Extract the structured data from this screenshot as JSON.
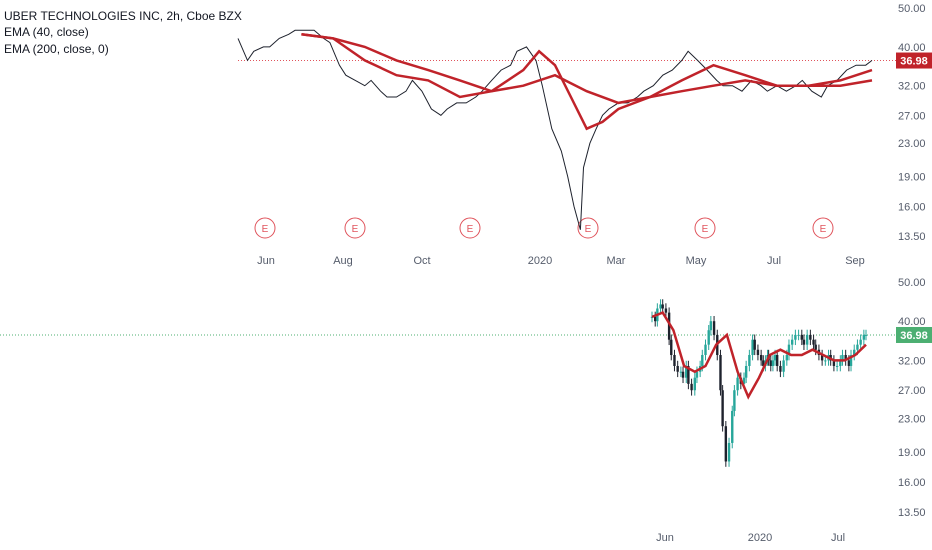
{
  "header": {
    "title": "UBER TECHNOLOGIES INC, 2h, Cboe BZX",
    "legend": [
      "EMA (40, close)",
      "EMA (200, close, 0)"
    ]
  },
  "colors": {
    "price_line": "#1e222d",
    "ema": "#c0232a",
    "up": "#26a69a",
    "down": "#1e222d",
    "earnings": "#e0545c",
    "last_price_tag": "#c0232a",
    "last_price_tag_lower": "#4caf72",
    "dotted_line_upper": "#e0545c",
    "dotted_line_lower": "#4caf72"
  },
  "chart_data": [
    {
      "type": "line",
      "title": "UBER TECHNOLOGIES INC, 2h, Cboe BZX",
      "y_scale": "log",
      "ylim": [
        13.5,
        50
      ],
      "y_ticks": [
        "50.00",
        "40.00",
        "32.00",
        "27.00",
        "23.00",
        "19.00",
        "16.00",
        "13.50"
      ],
      "x_ticks": [
        "Jun",
        "Aug",
        "Oct",
        "2020",
        "Mar",
        "May",
        "Jul",
        "Sep"
      ],
      "earnings_markers": [
        "E",
        "E",
        "E",
        "E",
        "E",
        "E"
      ],
      "last_price": "36.98",
      "series": [
        {
          "name": "Close",
          "x": [
            0,
            3,
            5,
            8,
            10,
            13,
            16,
            18,
            21,
            24,
            27,
            29,
            32,
            34,
            37,
            40,
            42,
            45,
            47,
            50,
            53,
            55,
            58,
            61,
            64,
            66,
            69,
            72,
            75,
            77,
            80,
            83,
            86,
            88,
            91,
            94,
            96,
            99,
            102,
            104,
            106,
            108,
            109,
            111,
            113,
            115,
            117,
            120,
            123,
            126,
            128,
            131,
            134,
            137,
            140,
            142,
            145,
            148,
            151,
            153,
            156,
            159,
            162,
            165,
            167,
            170,
            173,
            176,
            178,
            181,
            184,
            186,
            189,
            192,
            195,
            198,
            200
          ],
          "values": [
            42,
            37,
            39,
            40,
            40,
            42,
            43,
            44,
            44,
            44,
            42,
            41,
            36,
            34,
            33,
            32,
            33,
            31,
            30,
            30,
            31,
            33,
            31,
            28,
            27,
            28,
            29,
            29,
            30,
            31,
            33,
            35,
            36,
            39,
            40,
            37,
            32,
            25,
            22,
            19,
            16,
            14,
            20,
            23,
            25,
            27,
            28,
            29,
            29,
            30,
            31,
            32,
            34,
            35,
            37,
            39,
            37,
            35,
            33,
            32,
            32,
            31,
            33,
            32,
            31,
            32,
            31,
            32,
            33,
            31,
            30,
            32,
            33,
            35,
            36,
            36,
            37
          ]
        },
        {
          "name": "EMA (40, close)",
          "x": [
            20,
            30,
            40,
            50,
            60,
            70,
            80,
            90,
            95,
            100,
            105,
            110,
            115,
            120,
            130,
            140,
            150,
            160,
            170,
            180,
            190,
            200
          ],
          "values": [
            43,
            42,
            37,
            34,
            33,
            30,
            31,
            35,
            39,
            36,
            30,
            25,
            26,
            28,
            30,
            33,
            36,
            34,
            32,
            32,
            33,
            35
          ]
        },
        {
          "name": "EMA (200, close, 0)",
          "x": [
            20,
            30,
            40,
            50,
            60,
            70,
            80,
            90,
            100,
            110,
            120,
            130,
            140,
            150,
            160,
            170,
            180,
            190,
            200
          ],
          "values": [
            43,
            42,
            40,
            37,
            35,
            33,
            31,
            32,
            34,
            31,
            29,
            30,
            31,
            32,
            33,
            32,
            32,
            32,
            33
          ]
        }
      ]
    },
    {
      "type": "candlestick",
      "ylim": [
        13.5,
        50
      ],
      "y_ticks": [
        "50.00",
        "40.00",
        "32.00",
        "27.00",
        "23.00",
        "19.00",
        "16.00",
        "13.50"
      ],
      "x_ticks": [
        "Jun",
        "2020",
        "Jul"
      ],
      "last_price": "36.98",
      "series": [
        {
          "name": "Close",
          "x": [
            0,
            3,
            5,
            8,
            10,
            13,
            16,
            18,
            21,
            24,
            27,
            29,
            32,
            34,
            37,
            40,
            42,
            45,
            47,
            50,
            53,
            55,
            58,
            61,
            64,
            66,
            69,
            72,
            75,
            77,
            80,
            83,
            86,
            88,
            91,
            94,
            96,
            99,
            102,
            104,
            106,
            108,
            109,
            111,
            113,
            115,
            117,
            120,
            123,
            126,
            128,
            131,
            134,
            137,
            140,
            142,
            145,
            148,
            151,
            153,
            156,
            159,
            162,
            165,
            167,
            170,
            173,
            176,
            178,
            181,
            184,
            186,
            189,
            192,
            195,
            198,
            200
          ],
          "values": [
            41,
            40,
            43,
            44,
            43,
            42,
            36,
            33,
            31,
            30,
            30,
            29,
            31,
            28,
            27,
            29,
            30,
            31,
            33,
            35,
            38,
            40,
            37,
            33,
            27,
            22,
            18,
            20,
            24,
            27,
            29,
            28,
            29,
            31,
            33,
            36,
            34,
            33,
            32,
            31,
            32,
            33,
            32,
            31,
            32,
            33,
            31,
            30,
            32,
            33,
            35,
            36,
            37,
            37,
            36,
            35,
            37,
            36,
            35,
            34,
            33,
            32,
            32,
            33,
            32,
            31,
            31,
            32,
            33,
            32,
            31,
            33,
            34,
            35,
            36,
            37,
            37
          ]
        },
        {
          "name": "EMA (40, close)",
          "x": [
            0,
            10,
            20,
            30,
            40,
            50,
            60,
            70,
            80,
            90,
            100,
            110,
            120,
            130,
            140,
            150,
            160,
            170,
            180,
            190,
            200
          ],
          "values": [
            41,
            42,
            38,
            31,
            30,
            31,
            35,
            37,
            30,
            26,
            29,
            33,
            34,
            33,
            33,
            34,
            33,
            32,
            32,
            33,
            35
          ]
        }
      ]
    }
  ]
}
